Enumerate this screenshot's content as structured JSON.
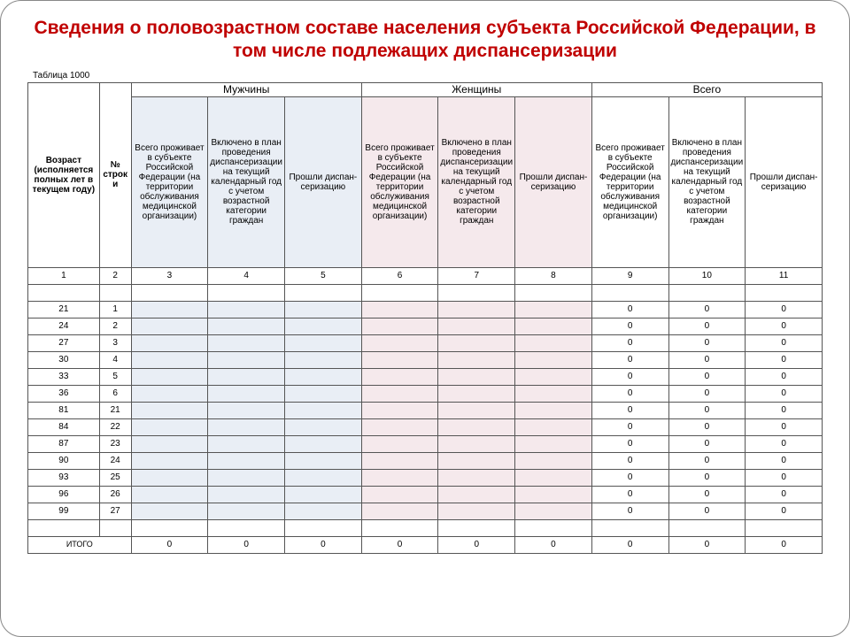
{
  "title": "Сведения о половозрастном составе населения субъекта Российской Федерации, в том числе подлежащих диспансеризации",
  "table_label": "Таблица 1000",
  "headers": {
    "age": "Возраст (исполняется полных лет в текущем году)",
    "rownum": "№ строки",
    "groups": {
      "men": "Мужчины",
      "women": "Женщины",
      "total": "Всего"
    },
    "sub": {
      "live": "Всего проживает в субъекте Российской Федерации (на территории обслуживания медицинской организации)",
      "plan": "Включено в план проведения диспансеризации на текущий календарный год с учетом возрастной категории граждан",
      "pass": "Прошли диспан-серизацию"
    }
  },
  "colnums": [
    "1",
    "2",
    "3",
    "4",
    "5",
    "6",
    "7",
    "8",
    "9",
    "10",
    "11"
  ],
  "rows": [
    {
      "age": "21",
      "n": "1",
      "c3": "",
      "c4": "",
      "c5": "",
      "c6": "",
      "c7": "",
      "c8": "",
      "c9": "0",
      "c10": "0",
      "c11": "0"
    },
    {
      "age": "24",
      "n": "2",
      "c3": "",
      "c4": "",
      "c5": "",
      "c6": "",
      "c7": "",
      "c8": "",
      "c9": "0",
      "c10": "0",
      "c11": "0"
    },
    {
      "age": "27",
      "n": "3",
      "c3": "",
      "c4": "",
      "c5": "",
      "c6": "",
      "c7": "",
      "c8": "",
      "c9": "0",
      "c10": "0",
      "c11": "0"
    },
    {
      "age": "30",
      "n": "4",
      "c3": "",
      "c4": "",
      "c5": "",
      "c6": "",
      "c7": "",
      "c8": "",
      "c9": "0",
      "c10": "0",
      "c11": "0"
    },
    {
      "age": "33",
      "n": "5",
      "c3": "",
      "c4": "",
      "c5": "",
      "c6": "",
      "c7": "",
      "c8": "",
      "c9": "0",
      "c10": "0",
      "c11": "0"
    },
    {
      "age": "36",
      "n": "6",
      "c3": "",
      "c4": "",
      "c5": "",
      "c6": "",
      "c7": "",
      "c8": "",
      "c9": "0",
      "c10": "0",
      "c11": "0"
    },
    {
      "age": "81",
      "n": "21",
      "c3": "",
      "c4": "",
      "c5": "",
      "c6": "",
      "c7": "",
      "c8": "",
      "c9": "0",
      "c10": "0",
      "c11": "0"
    },
    {
      "age": "84",
      "n": "22",
      "c3": "",
      "c4": "",
      "c5": "",
      "c6": "",
      "c7": "",
      "c8": "",
      "c9": "0",
      "c10": "0",
      "c11": "0"
    },
    {
      "age": "87",
      "n": "23",
      "c3": "",
      "c4": "",
      "c5": "",
      "c6": "",
      "c7": "",
      "c8": "",
      "c9": "0",
      "c10": "0",
      "c11": "0"
    },
    {
      "age": "90",
      "n": "24",
      "c3": "",
      "c4": "",
      "c5": "",
      "c6": "",
      "c7": "",
      "c8": "",
      "c9": "0",
      "c10": "0",
      "c11": "0"
    },
    {
      "age": "93",
      "n": "25",
      "c3": "",
      "c4": "",
      "c5": "",
      "c6": "",
      "c7": "",
      "c8": "",
      "c9": "0",
      "c10": "0",
      "c11": "0"
    },
    {
      "age": "96",
      "n": "26",
      "c3": "",
      "c4": "",
      "c5": "",
      "c6": "",
      "c7": "",
      "c8": "",
      "c9": "0",
      "c10": "0",
      "c11": "0"
    },
    {
      "age": "99",
      "n": "27",
      "c3": "",
      "c4": "",
      "c5": "",
      "c6": "",
      "c7": "",
      "c8": "",
      "c9": "0",
      "c10": "0",
      "c11": "0"
    }
  ],
  "total_label": "ИТОГО",
  "total": {
    "c3": "0",
    "c4": "0",
    "c5": "0",
    "c6": "0",
    "c7": "0",
    "c8": "0",
    "c9": "0",
    "c10": "0",
    "c11": "0"
  }
}
